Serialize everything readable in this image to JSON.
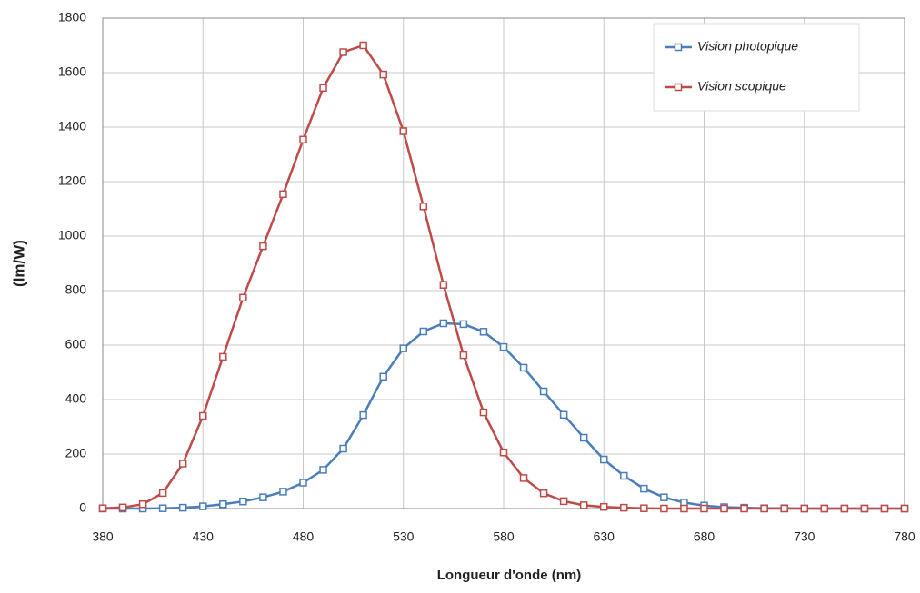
{
  "chart_data": {
    "type": "line",
    "x_label": "Longueur d'onde (nm)",
    "y_label": "(lm/W)",
    "x": [
      380,
      390,
      400,
      410,
      420,
      430,
      440,
      450,
      460,
      470,
      480,
      490,
      500,
      510,
      520,
      530,
      540,
      550,
      560,
      570,
      580,
      590,
      600,
      610,
      620,
      630,
      640,
      650,
      660,
      670,
      680,
      690,
      700,
      710,
      720,
      730,
      740,
      750,
      760,
      770,
      780
    ],
    "series": [
      {
        "name": "Vision photopique",
        "color": "#4a7ebb",
        "values": [
          0,
          0,
          0,
          1,
          3,
          8,
          16,
          26,
          41,
          62,
          95,
          142,
          220,
          343,
          484,
          588,
          650,
          680,
          677,
          649,
          593,
          517,
          430,
          344,
          260,
          180,
          120,
          73,
          41,
          22,
          11,
          5,
          3,
          1,
          1,
          0,
          0,
          0,
          0,
          0,
          0
        ]
      },
      {
        "name": "Vision scopique",
        "color": "#be4b48",
        "values": [
          1,
          4,
          16,
          57,
          165,
          340,
          557,
          774,
          963,
          1154,
          1354,
          1544,
          1675,
          1700,
          1593,
          1385,
          1109,
          821,
          563,
          353,
          206,
          112,
          56,
          27,
          12,
          6,
          3,
          1,
          0,
          0,
          0,
          0,
          0,
          0,
          0,
          0,
          0,
          0,
          0,
          0,
          0
        ]
      }
    ],
    "xlim": [
      380,
      780
    ],
    "xticks": [
      380,
      430,
      480,
      530,
      580,
      630,
      680,
      730,
      780
    ],
    "ylim": [
      0,
      1800
    ],
    "yticks": [
      0,
      200,
      400,
      600,
      800,
      1000,
      1200,
      1400,
      1600,
      1800
    ],
    "grid": true,
    "legend": "upper right"
  }
}
